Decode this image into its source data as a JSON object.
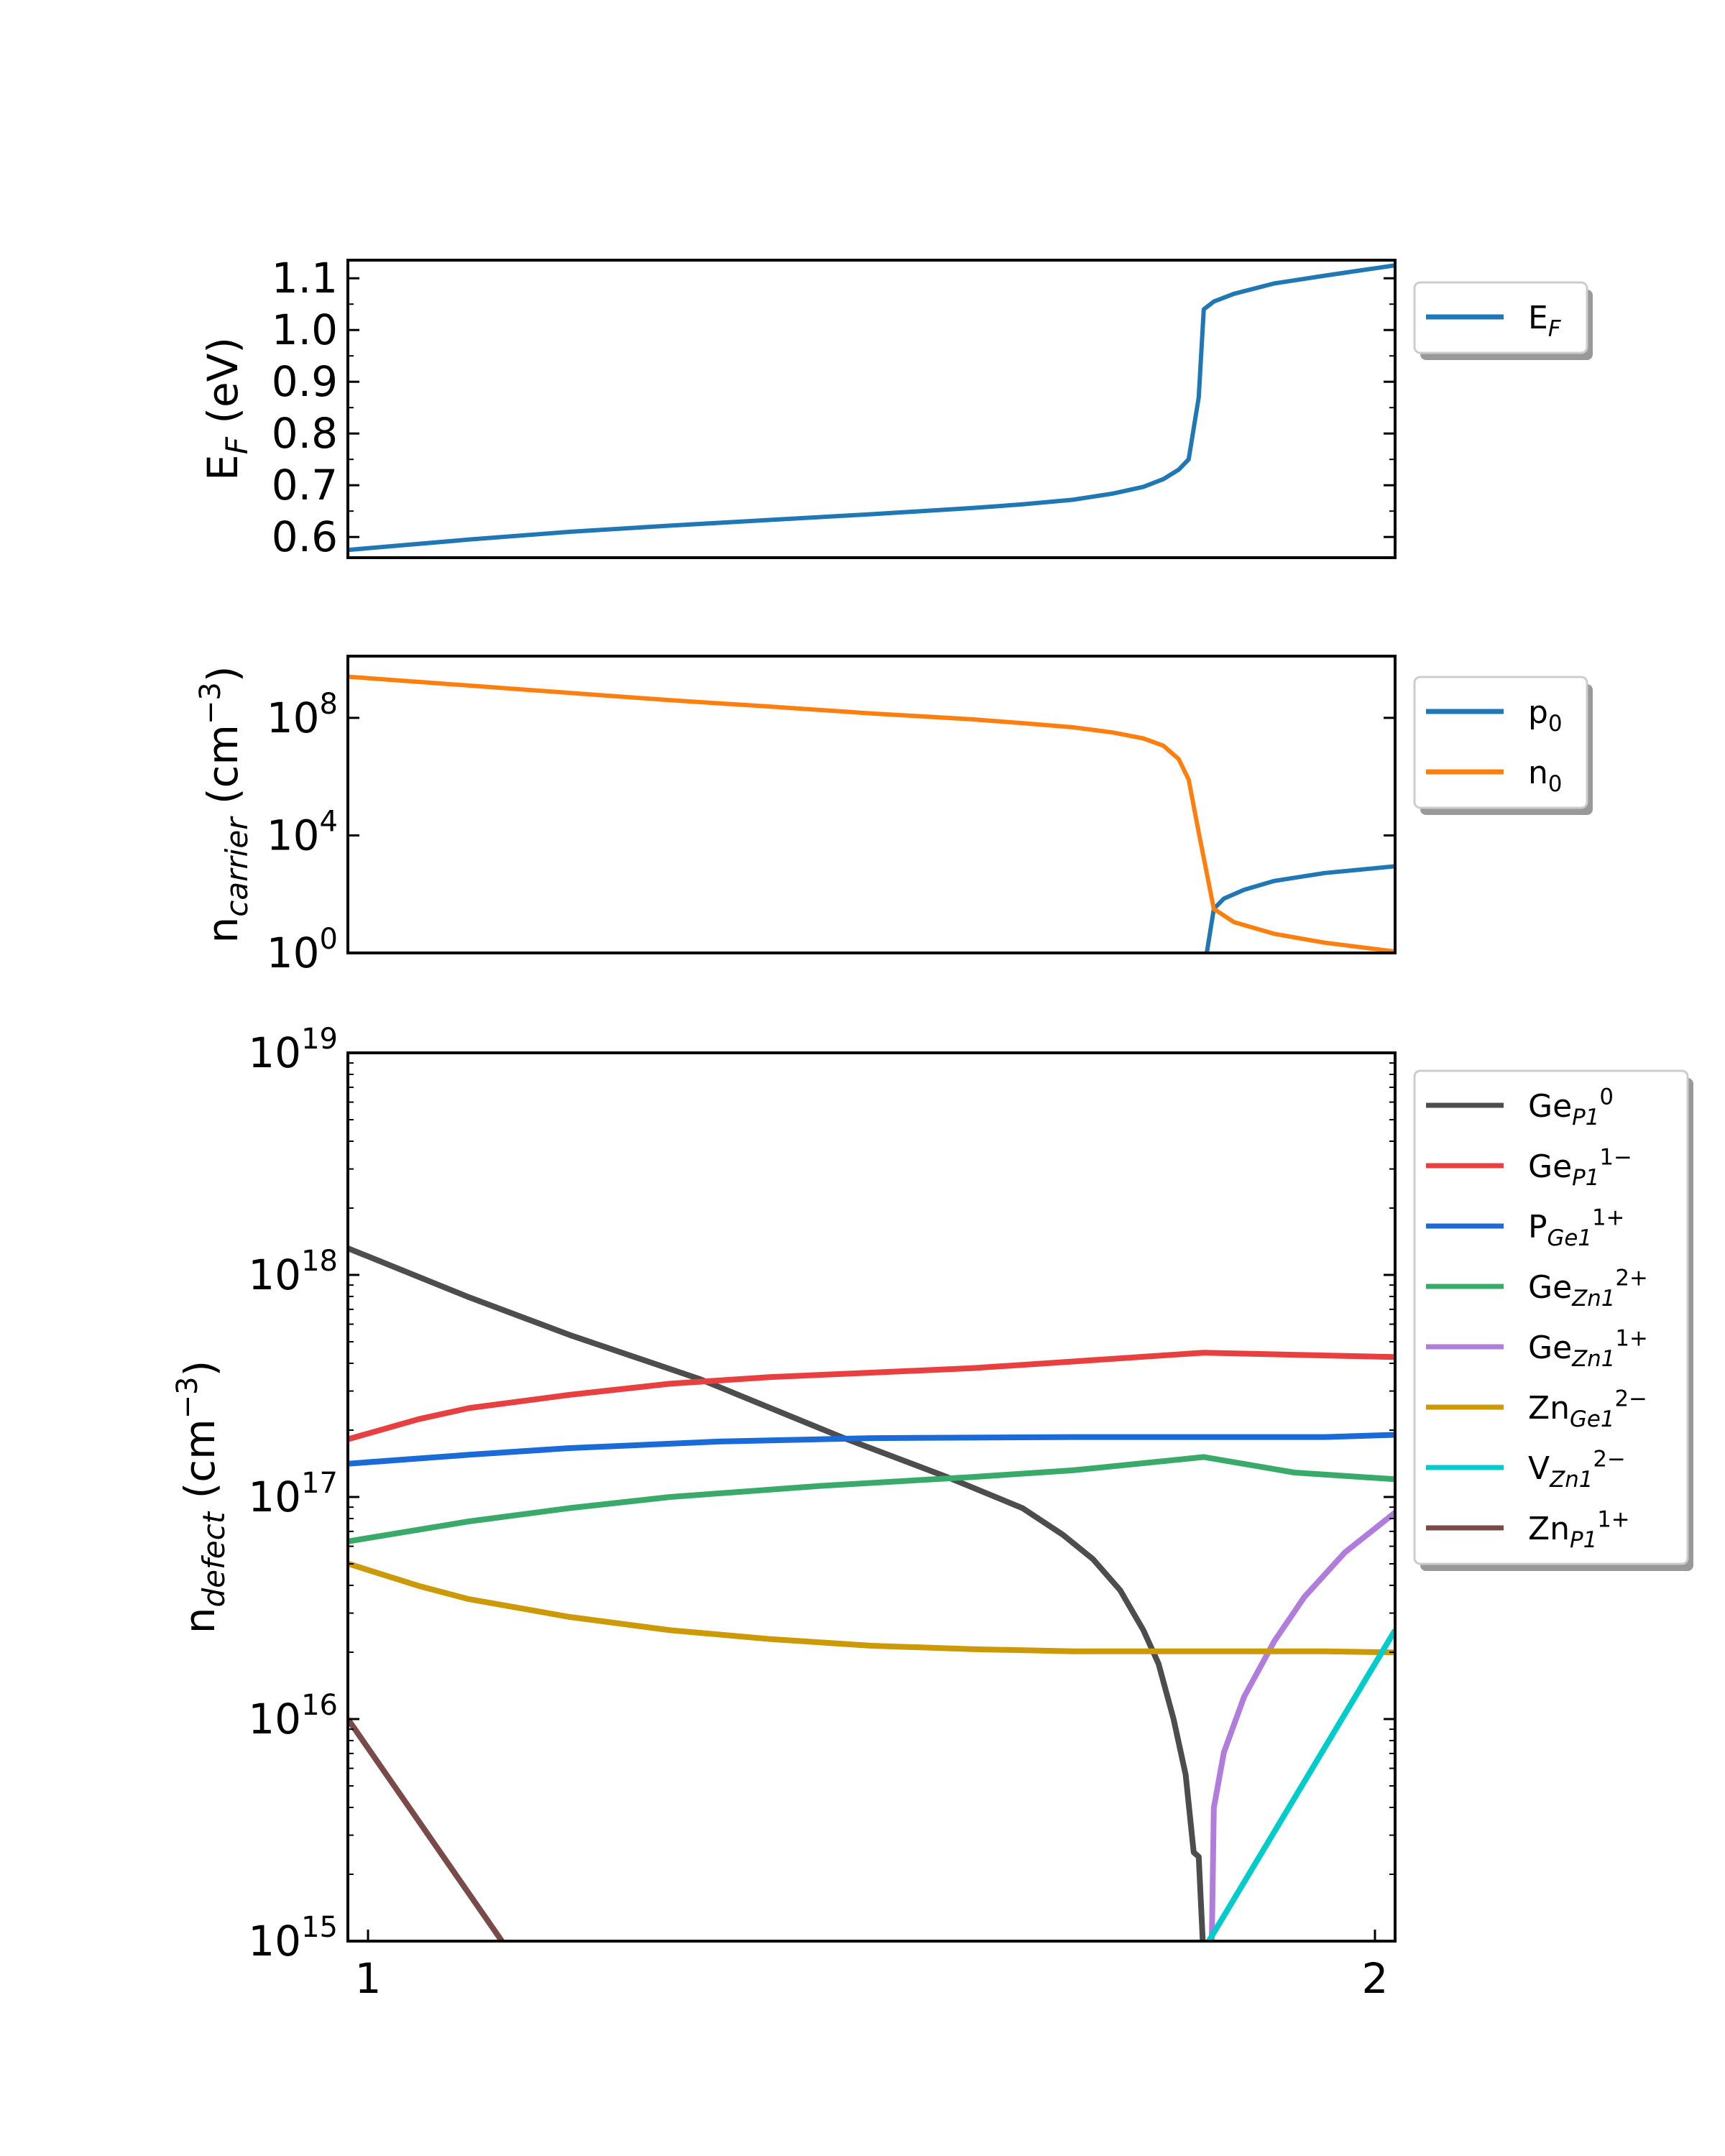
{
  "chart_data": [
    {
      "type": "line",
      "ylabel": {
        "base": "E",
        "sub": "F",
        "rest": " (eV)"
      },
      "yscale": "linear",
      "ylim": [
        0.56,
        1.135
      ],
      "xlim": [
        0.98,
        2.02
      ],
      "yticks": [
        0.6,
        0.7,
        0.8,
        0.9,
        1.0,
        1.1
      ],
      "ytick_labels": [
        "0.6",
        "0.7",
        "0.8",
        "0.9",
        "1.0",
        "1.1"
      ],
      "grid": false,
      "legend_position": "outside-right-top",
      "series": [
        {
          "name": {
            "base": "E",
            "sub": "F",
            "sup": ""
          },
          "color": "#1f77b4",
          "x": [
            0.98,
            1.1,
            1.2,
            1.3,
            1.4,
            1.5,
            1.6,
            1.65,
            1.7,
            1.74,
            1.77,
            1.79,
            1.805,
            1.815,
            1.825,
            1.83,
            1.84,
            1.86,
            1.9,
            1.95,
            2.02
          ],
          "y": [
            0.575,
            0.595,
            0.61,
            0.622,
            0.633,
            0.644,
            0.656,
            0.663,
            0.672,
            0.684,
            0.697,
            0.712,
            0.73,
            0.75,
            0.87,
            1.04,
            1.055,
            1.07,
            1.09,
            1.105,
            1.125
          ]
        }
      ]
    },
    {
      "type": "line",
      "ylabel": {
        "base": "n",
        "sub": "carrier",
        "rest": " (cm",
        "sup": "−3",
        "end": ")"
      },
      "yscale": "log",
      "ylim_exp": [
        0,
        10.1
      ],
      "xlim": [
        0.98,
        2.02
      ],
      "yticks_exp": [
        0,
        4,
        8
      ],
      "ytick_labels": [
        {
          "base": "10",
          "sup": "0"
        },
        {
          "base": "10",
          "sup": "4"
        },
        {
          "base": "10",
          "sup": "8"
        }
      ],
      "grid": false,
      "legend_position": "outside-right-top",
      "series": [
        {
          "name": {
            "base": "p",
            "sub": "0",
            "sup": ""
          },
          "color": "#1f77b4",
          "x": [
            1.833,
            1.84,
            1.85,
            1.87,
            1.9,
            1.95,
            2.02
          ],
          "log10_y": [
            0,
            1.5,
            1.85,
            2.15,
            2.45,
            2.72,
            2.95
          ]
        },
        {
          "name": {
            "base": "n",
            "sub": "0",
            "sup": ""
          },
          "color": "#ff7f0e",
          "x": [
            0.98,
            1.1,
            1.2,
            1.3,
            1.4,
            1.5,
            1.6,
            1.65,
            1.7,
            1.74,
            1.77,
            1.79,
            1.805,
            1.815,
            1.825,
            1.84,
            1.86,
            1.9,
            1.95,
            2.02
          ],
          "log10_y": [
            9.4,
            9.1,
            8.85,
            8.6,
            8.38,
            8.15,
            7.95,
            7.82,
            7.68,
            7.5,
            7.3,
            7.05,
            6.6,
            5.9,
            4.1,
            1.5,
            1.05,
            0.65,
            0.35,
            0.05
          ]
        }
      ]
    },
    {
      "type": "line",
      "ylabel": {
        "base": "n",
        "sub": "defect",
        "rest": " (cm",
        "sup": "−3",
        "end": ")"
      },
      "yscale": "log",
      "ylim_exp": [
        15,
        19
      ],
      "xlim": [
        0.98,
        2.02
      ],
      "yticks_exp": [
        15,
        16,
        17,
        18,
        19
      ],
      "ytick_labels": [
        {
          "base": "10",
          "sup": "15"
        },
        {
          "base": "10",
          "sup": "16"
        },
        {
          "base": "10",
          "sup": "17"
        },
        {
          "base": "10",
          "sup": "18"
        },
        {
          "base": "10",
          "sup": "19"
        }
      ],
      "xticks": [
        1,
        2
      ],
      "xtick_labels": [
        "1",
        "2"
      ],
      "grid": false,
      "legend_position": "outside-right-top",
      "series": [
        {
          "name": {
            "base": "Ge",
            "sub": "P1",
            "sup": "0"
          },
          "color": "#4d4d4d",
          "x": [
            0.98,
            1.1,
            1.2,
            1.33,
            1.47,
            1.575,
            1.65,
            1.69,
            1.72,
            1.747,
            1.77,
            1.785,
            1.8,
            1.812,
            1.82,
            1.825,
            1.829
          ],
          "log10_y": [
            18.12,
            17.9,
            17.73,
            17.53,
            17.27,
            17.09,
            16.95,
            16.83,
            16.72,
            16.58,
            16.4,
            16.25,
            16.0,
            15.75,
            15.4,
            15.38,
            15.0
          ]
        },
        {
          "name": {
            "base": "Ge",
            "sub": "P1",
            "sup": "1−"
          },
          "color": "#e84040",
          "x": [
            0.98,
            1.05,
            1.1,
            1.2,
            1.3,
            1.4,
            1.5,
            1.6,
            1.7,
            1.83,
            2.02
          ],
          "log10_y": [
            17.26,
            17.35,
            17.4,
            17.46,
            17.51,
            17.54,
            17.56,
            17.58,
            17.61,
            17.65,
            17.63
          ]
        },
        {
          "name": {
            "base": "P",
            "sub": "Ge1",
            "sup": "1+"
          },
          "color": "#1a6ad8",
          "x": [
            0.98,
            1.1,
            1.2,
            1.35,
            1.5,
            1.7,
            1.83,
            1.95,
            2.02
          ],
          "log10_y": [
            17.15,
            17.19,
            17.22,
            17.25,
            17.265,
            17.27,
            17.27,
            17.27,
            17.28
          ]
        },
        {
          "name": {
            "base": "Ge",
            "sub": "Zn1",
            "sup": "2+"
          },
          "color": "#3aaa6a",
          "x": [
            0.98,
            1.1,
            1.2,
            1.3,
            1.45,
            1.6,
            1.7,
            1.83,
            1.92,
            2.02
          ],
          "log10_y": [
            16.8,
            16.89,
            16.95,
            17.0,
            17.05,
            17.09,
            17.12,
            17.18,
            17.11,
            17.08
          ]
        },
        {
          "name": {
            "base": "Ge",
            "sub": "Zn1",
            "sup": "1+"
          },
          "color": "#b07ddd",
          "x": [
            1.838,
            1.84,
            1.85,
            1.87,
            1.9,
            1.93,
            1.97,
            2.02
          ],
          "log10_y": [
            15.0,
            15.6,
            15.85,
            16.1,
            16.35,
            16.55,
            16.75,
            16.93
          ]
        },
        {
          "name": {
            "base": "Zn",
            "sub": "Ge1",
            "sup": "2−"
          },
          "color": "#cc9a06",
          "x": [
            0.98,
            1.05,
            1.1,
            1.2,
            1.3,
            1.4,
            1.5,
            1.6,
            1.7,
            1.83,
            1.95,
            2.02
          ],
          "log10_y": [
            16.7,
            16.6,
            16.54,
            16.46,
            16.4,
            16.36,
            16.33,
            16.315,
            16.305,
            16.305,
            16.305,
            16.3
          ]
        },
        {
          "name": {
            "base": "V",
            "sub": "Zn1",
            "sup": "2−"
          },
          "color": "#00cccc",
          "x": [
            1.835,
            2.02
          ],
          "log10_y": [
            15.0,
            16.4
          ]
        },
        {
          "name": {
            "base": "Zn",
            "sub": "P1",
            "sup": "1+"
          },
          "color": "#7a4a48",
          "x": [
            0.98,
            1.133
          ],
          "log10_y": [
            16.0,
            15.0
          ]
        }
      ]
    }
  ]
}
